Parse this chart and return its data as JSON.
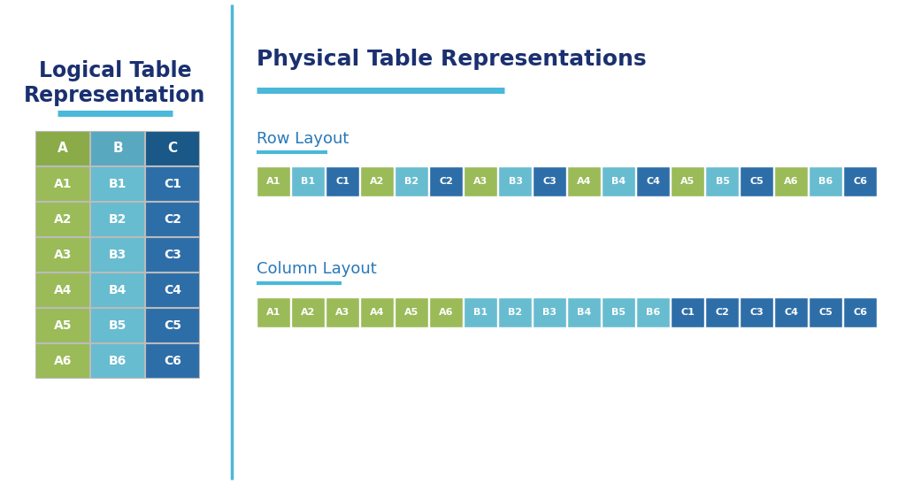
{
  "bg_color": "#ffffff",
  "left_title": "Logical Table\nRepresentation",
  "right_title": "Physical Table Representations",
  "title_color": "#1a3070",
  "accent_color": "#4ab8d8",
  "row_layout_label": "Row Layout",
  "col_layout_label": "Column Layout",
  "layout_label_color": "#2878b8",
  "table_headers": [
    "A",
    "B",
    "C"
  ],
  "table_rows": [
    [
      "A1",
      "B1",
      "C1"
    ],
    [
      "A2",
      "B2",
      "C2"
    ],
    [
      "A3",
      "B3",
      "C3"
    ],
    [
      "A4",
      "B4",
      "C4"
    ],
    [
      "A5",
      "B5",
      "C5"
    ],
    [
      "A6",
      "B6",
      "C6"
    ]
  ],
  "col_A_color": "#9abb58",
  "col_B_color": "#68bcd0",
  "col_C_color": "#2e6ea8",
  "col_A_header_color": "#8aab48",
  "col_B_header_color": "#58a8c0",
  "col_C_header_color": "#1a5888",
  "row_layout": [
    "A1",
    "B1",
    "C1",
    "A2",
    "B2",
    "C2",
    "A3",
    "B3",
    "C3",
    "A4",
    "B4",
    "C4",
    "A5",
    "B5",
    "C5",
    "A6",
    "B6",
    "C6"
  ],
  "col_layout": [
    "A1",
    "A2",
    "A3",
    "A4",
    "A5",
    "A6",
    "B1",
    "B2",
    "B3",
    "B4",
    "B5",
    "B6",
    "C1",
    "C2",
    "C3",
    "C4",
    "C5",
    "C6"
  ],
  "cell_text_color": "#ffffff",
  "vertical_line_color": "#4ab8d8"
}
